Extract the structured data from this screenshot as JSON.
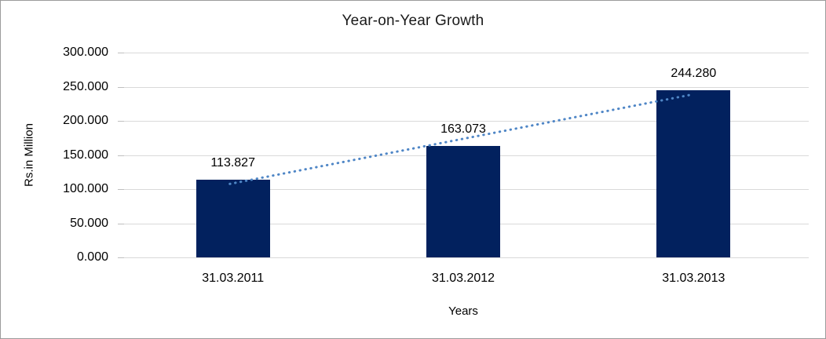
{
  "chart": {
    "title": "Year-on-Year Growth",
    "y_axis_title": "Rs.in Million",
    "x_axis_title": "Years"
  },
  "chart_data": {
    "type": "bar",
    "title": "Year-on-Year Growth",
    "xlabel": "Years",
    "ylabel": "Rs.in Million",
    "categories": [
      "31.03.2011",
      "31.03.2012",
      "31.03.2013"
    ],
    "values": [
      113.827,
      163.073,
      244.28
    ],
    "value_labels": [
      "113.827",
      "163.073",
      "244.280"
    ],
    "y_ticks": [
      {
        "value": 300,
        "label": "300.000"
      },
      {
        "value": 250,
        "label": "250.000"
      },
      {
        "value": 200,
        "label": "200.000"
      },
      {
        "value": 150,
        "label": "150.000"
      },
      {
        "value": 100,
        "label": "100.000"
      },
      {
        "value": 50,
        "label": "50.000"
      },
      {
        "value": 0,
        "label": "0.000"
      }
    ],
    "ylim": [
      0,
      300
    ],
    "grid": true,
    "legend": false,
    "trendline": {
      "type": "linear",
      "style": "dotted"
    },
    "colors": {
      "bar": "#02215e",
      "trendline": "#4f86c6",
      "gridline": "#d9d9d9",
      "tickmark": "#bfbfbf",
      "text": "#000000",
      "frame_border": "#9b9b9b"
    }
  }
}
